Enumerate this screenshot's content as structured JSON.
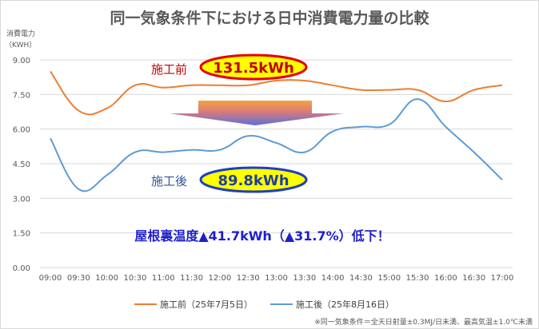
{
  "chart_data": {
    "type": "line",
    "title": "同一気象条件下における日中消費電力量の比較",
    "ylabel_line1": "消費電力",
    "ylabel_line2": "（KWH）",
    "ylim": [
      0,
      9
    ],
    "yticks": [
      "0.00",
      "1.50",
      "3.00",
      "4.50",
      "6.00",
      "7.50",
      "9.00"
    ],
    "x": [
      "09:00",
      "09:30",
      "10:00",
      "10:30",
      "11:00",
      "11:30",
      "12:00",
      "12:30",
      "13:00",
      "13:30",
      "14:00",
      "14:30",
      "15:00",
      "15:30",
      "16:00",
      "16:30",
      "17:00"
    ],
    "grid": "horizontal",
    "legend_position": "bottom",
    "series": [
      {
        "name": "施工前（25年7月5日）",
        "color": "#ED7D31",
        "values": [
          8.5,
          6.8,
          6.9,
          7.9,
          7.8,
          7.9,
          7.9,
          7.9,
          8.1,
          8.1,
          7.9,
          7.7,
          7.7,
          7.7,
          7.2,
          7.7,
          7.9
        ]
      },
      {
        "name": "施工後（25年8月16日）",
        "color": "#5B9BD5",
        "values": [
          5.6,
          3.4,
          4.0,
          5.0,
          5.0,
          5.1,
          5.1,
          5.7,
          5.4,
          5.0,
          5.9,
          6.1,
          6.2,
          7.3,
          6.1,
          5.0,
          3.8
        ]
      }
    ],
    "annotations": {
      "before_label": "施工前",
      "before_value": "131.5kWh",
      "after_label": "施工後",
      "after_value": "89.8kWh",
      "summary": "屋根裏温度▲41.7kWh（▲31.7%）低下！"
    },
    "footnote": "※同一気象条件＝全天日射量±0.3MJ/日未満、最高気温±1.0℃未満"
  }
}
